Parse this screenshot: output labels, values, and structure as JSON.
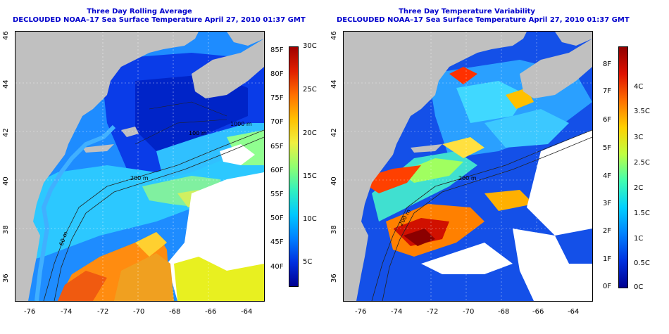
{
  "left_panel": {
    "title": "Three Day Rolling Average",
    "subtitle": "DECLOUDED NOAA–17 Sea Surface Temperature April 27, 2010 01:37 GMT",
    "x_ticks": [
      "-76",
      "-74",
      "-72",
      "-70",
      "-68",
      "-66",
      "-64"
    ],
    "y_ticks": [
      "46",
      "44",
      "42",
      "40",
      "38",
      "36"
    ],
    "contour_labels": [
      "200 m",
      "1000 m",
      "60 m",
      "100 m"
    ],
    "colorbar": {
      "fahrenheit": [
        "85F",
        "80F",
        "75F",
        "70F",
        "65F",
        "60F",
        "55F",
        "50F",
        "45F",
        "40F"
      ],
      "celsius": [
        "30C",
        "25C",
        "20C",
        "15C",
        "10C",
        "5C"
      ],
      "gradient": [
        "#a00000",
        "#e02000",
        "#ff7000",
        "#ffc000",
        "#f0f040",
        "#90ff70",
        "#30f0c0",
        "#00c8ff",
        "#0080ff",
        "#0030e0",
        "#000090"
      ]
    }
  },
  "right_panel": {
    "title": "Three Day Temperature Variability",
    "subtitle": "DECLOUDED NOAA–17 Sea Surface Temperature April 27, 2010 01:37 GMT",
    "x_ticks": [
      "-76",
      "-74",
      "-72",
      "-70",
      "-68",
      "-66",
      "-64"
    ],
    "y_ticks": [
      "46",
      "44",
      "42",
      "40",
      "38",
      "36"
    ],
    "contour_labels": [
      "200 m",
      "200 m"
    ],
    "colorbar": {
      "fahrenheit": [
        "8F",
        "7F",
        "6F",
        "5F",
        "4F",
        "3F",
        "2F",
        "1F",
        "0F"
      ],
      "celsius": [
        "4C",
        "3.5C",
        "3C",
        "2.5C",
        "2C",
        "1.5C",
        "1C",
        "0.5C",
        "0C"
      ],
      "gradient": [
        "#900000",
        "#e01000",
        "#ff7000",
        "#ffd000",
        "#c0ff40",
        "#40ffb0",
        "#00d0ff",
        "#0080ff",
        "#0030e0",
        "#000090"
      ]
    }
  },
  "colors": {
    "land": "#c0c0c0",
    "no_data": "#ffffff",
    "title_blue": "#0000cc"
  }
}
